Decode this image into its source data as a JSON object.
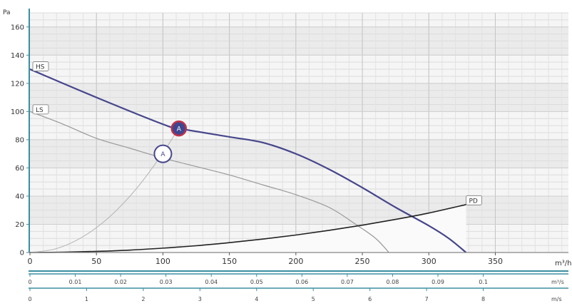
{
  "chart_data": {
    "type": "line",
    "y_unit": "Pa",
    "x_unit": "m³/h",
    "ylim": [
      0,
      170
    ],
    "xlim": [
      0,
      405
    ],
    "y_ticks": [
      0,
      20,
      40,
      60,
      80,
      100,
      120,
      140,
      160
    ],
    "x_ticks": [
      0,
      50,
      100,
      150,
      200,
      250,
      300,
      350
    ],
    "grid": true,
    "series": [
      {
        "name": "HS",
        "color": "#46468c",
        "points": [
          [
            0,
            130
          ],
          [
            50,
            110
          ],
          [
            100,
            91
          ],
          [
            112,
            88
          ],
          [
            150,
            82
          ],
          [
            175,
            78
          ],
          [
            200,
            70
          ],
          [
            225,
            59
          ],
          [
            250,
            46
          ],
          [
            275,
            32
          ],
          [
            300,
            19
          ],
          [
            315,
            10
          ],
          [
            328,
            0
          ]
        ]
      },
      {
        "name": "LS",
        "color": "#999999",
        "points": [
          [
            0,
            100
          ],
          [
            25,
            91
          ],
          [
            50,
            81
          ],
          [
            75,
            74
          ],
          [
            100,
            67
          ],
          [
            125,
            61
          ],
          [
            150,
            55
          ],
          [
            175,
            48
          ],
          [
            200,
            41
          ],
          [
            225,
            32
          ],
          [
            245,
            20
          ],
          [
            260,
            10
          ],
          [
            270,
            0
          ]
        ]
      },
      {
        "name": "PD",
        "color": "#222222",
        "points": [
          [
            0,
            0
          ],
          [
            25,
            0.2
          ],
          [
            50,
            0.8
          ],
          [
            75,
            1.7
          ],
          [
            100,
            3.1
          ],
          [
            125,
            4.8
          ],
          [
            150,
            7
          ],
          [
            175,
            9.5
          ],
          [
            200,
            12.4
          ],
          [
            225,
            15.7
          ],
          [
            250,
            19.4
          ],
          [
            275,
            23.5
          ],
          [
            300,
            28
          ],
          [
            328,
            34
          ]
        ]
      },
      {
        "name": "system-curve",
        "color": "#b8b8b8",
        "points": [
          [
            0,
            0
          ],
          [
            20,
            2.8
          ],
          [
            40,
            11.3
          ],
          [
            60,
            25.4
          ],
          [
            80,
            45.2
          ],
          [
            100,
            70.6
          ],
          [
            112,
            88.6
          ]
        ]
      }
    ],
    "operating_points": [
      {
        "label": "A",
        "x": 112,
        "y": 88,
        "style": "filled"
      },
      {
        "label": "A",
        "x": 100,
        "y": 70,
        "style": "hollow"
      }
    ],
    "secondary_axes": [
      {
        "unit": "m³/s",
        "max": 0.1125,
        "ticks": [
          "0",
          "0.01",
          "0.02",
          "0.03",
          "0.04",
          "0.05",
          "0.06",
          "0.07",
          "0.08",
          "0.09",
          "0.1"
        ],
        "values": [
          0,
          0.01,
          0.02,
          0.03,
          0.04,
          0.05,
          0.06,
          0.07,
          0.08,
          0.09,
          0.1
        ]
      },
      {
        "unit": "m/s",
        "max": 9.0,
        "ticks": [
          "0",
          "1",
          "2",
          "3",
          "4",
          "5",
          "6",
          "7",
          "8"
        ],
        "values": [
          0,
          1,
          2,
          3,
          4,
          5,
          6,
          7,
          8
        ]
      }
    ]
  }
}
